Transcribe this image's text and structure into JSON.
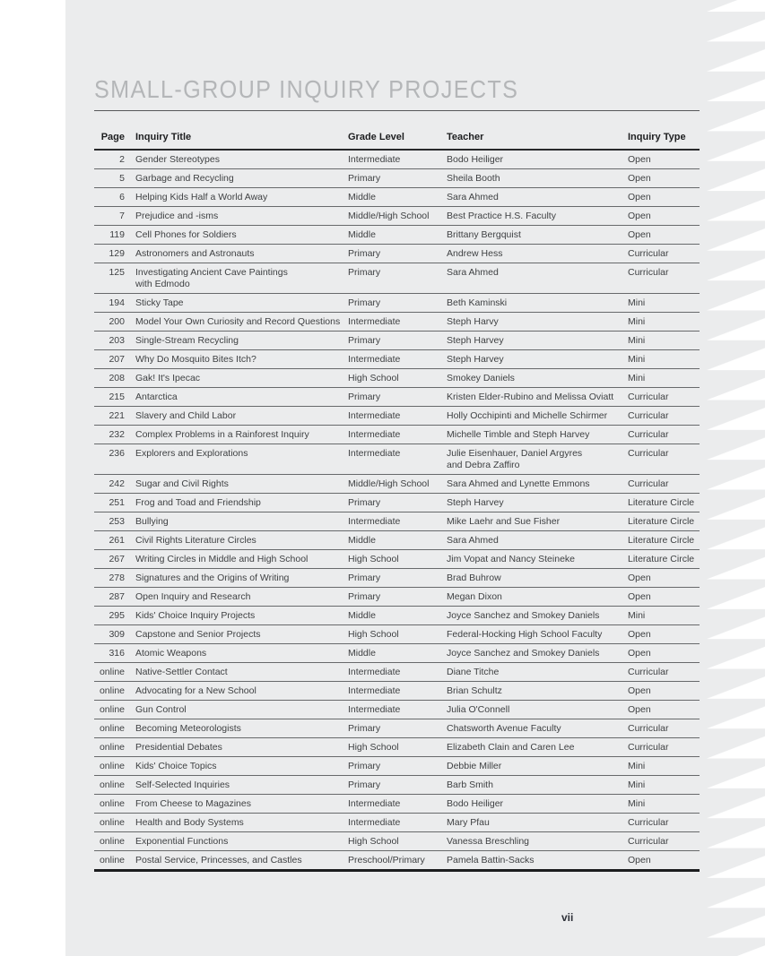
{
  "page": {
    "title": "SMALL-GROUP INQUIRY PROJECTS",
    "page_number": "vii"
  },
  "colors": {
    "sheet_background": "#ebeced",
    "margin_background": "#ffffff",
    "title_text": "#b4b6b8",
    "body_text": "#3f4143",
    "header_text": "#1d1e20",
    "row_rule": "#67696b",
    "heavy_rule": "#1c1d1f"
  },
  "table": {
    "headers": {
      "page": "Page",
      "title": "Inquiry Title",
      "grade": "Grade Level",
      "teacher": "Teacher",
      "type": "Inquiry Type"
    },
    "rows": [
      {
        "page": "2",
        "title": "Gender Stereotypes",
        "grade": "Intermediate",
        "teacher": "Bodo Heiliger",
        "type": "Open"
      },
      {
        "page": "5",
        "title": "Garbage and Recycling",
        "grade": "Primary",
        "teacher": "Sheila Booth",
        "type": "Open"
      },
      {
        "page": "6",
        "title": "Helping Kids Half a World Away",
        "grade": "Middle",
        "teacher": "Sara Ahmed",
        "type": "Open"
      },
      {
        "page": "7",
        "title": "Prejudice and -isms",
        "grade": "Middle/High School",
        "teacher": "Best Practice H.S. Faculty",
        "type": "Open"
      },
      {
        "page": "119",
        "title": "Cell Phones for Soldiers",
        "grade": "Middle",
        "teacher": "Brittany Bergquist",
        "type": "Open"
      },
      {
        "page": "129",
        "title": "Astronomers and Astronauts",
        "grade": "Primary",
        "teacher": "Andrew Hess",
        "type": "Curricular"
      },
      {
        "page": "125",
        "title": "Investigating Ancient Cave Paintings\nwith Edmodo",
        "grade": "Primary",
        "teacher": "Sara Ahmed",
        "type": "Curricular"
      },
      {
        "page": "194",
        "title": "Sticky Tape",
        "grade": "Primary",
        "teacher": "Beth Kaminski",
        "type": "Mini"
      },
      {
        "page": "200",
        "title": "Model Your Own Curiosity and Record Questions",
        "grade": "Intermediate",
        "teacher": "Steph Harvy",
        "type": "Mini"
      },
      {
        "page": "203",
        "title": "Single-Stream Recycling",
        "grade": "Primary",
        "teacher": "Steph Harvey",
        "type": "Mini"
      },
      {
        "page": "207",
        "title": "Why Do Mosquito Bites Itch?",
        "grade": "Intermediate",
        "teacher": "Steph Harvey",
        "type": "Mini"
      },
      {
        "page": "208",
        "title": "Gak! It's Ipecac",
        "grade": "High School",
        "teacher": "Smokey Daniels",
        "type": "Mini"
      },
      {
        "page": "215",
        "title": "Antarctica",
        "grade": "Primary",
        "teacher": "Kristen Elder-Rubino and Melissa Oviatt",
        "type": "Curricular"
      },
      {
        "page": "221",
        "title": "Slavery and Child Labor",
        "grade": "Intermediate",
        "teacher": "Holly Occhipinti and Michelle Schirmer",
        "type": "Curricular"
      },
      {
        "page": "232",
        "title": "Complex Problems in a Rainforest Inquiry",
        "grade": "Intermediate",
        "teacher": "Michelle Timble and Steph Harvey",
        "type": "Curricular"
      },
      {
        "page": "236",
        "title": "Explorers and Explorations",
        "grade": "Intermediate",
        "teacher": "Julie Eisenhauer, Daniel Argyres\nand Debra Zaffiro",
        "type": "Curricular"
      },
      {
        "page": "242",
        "title": "Sugar and Civil Rights",
        "grade": "Middle/High School",
        "teacher": "Sara Ahmed and Lynette Emmons",
        "type": "Curricular"
      },
      {
        "page": "251",
        "title": "Frog and Toad and Friendship",
        "grade": "Primary",
        "teacher": "Steph Harvey",
        "type": "Literature Circle"
      },
      {
        "page": "253",
        "title": "Bullying",
        "grade": "Intermediate",
        "teacher": "Mike Laehr and Sue Fisher",
        "type": "Literature Circle"
      },
      {
        "page": "261",
        "title": "Civil Rights Literature Circles",
        "grade": "Middle",
        "teacher": "Sara Ahmed",
        "type": "Literature Circle"
      },
      {
        "page": "267",
        "title": "Writing Circles in Middle and High School",
        "grade": "High School",
        "teacher": "Jim Vopat and Nancy Steineke",
        "type": "Literature Circle"
      },
      {
        "page": "278",
        "title": "Signatures and the Origins of Writing",
        "grade": "Primary",
        "teacher": "Brad Buhrow",
        "type": "Open"
      },
      {
        "page": "287",
        "title": "Open Inquiry and Research",
        "grade": "Primary",
        "teacher": "Megan Dixon",
        "type": "Open"
      },
      {
        "page": "295",
        "title": "Kids' Choice Inquiry Projects",
        "grade": "Middle",
        "teacher": "Joyce Sanchez and Smokey Daniels",
        "type": "Mini"
      },
      {
        "page": "309",
        "title": "Capstone and Senior Projects",
        "grade": "High School",
        "teacher": "Federal-Hocking High School Faculty",
        "type": "Open"
      },
      {
        "page": "316",
        "title": "Atomic Weapons",
        "grade": "Middle",
        "teacher": "Joyce Sanchez and Smokey Daniels",
        "type": "Open"
      },
      {
        "page": "online",
        "title": "Native-Settler Contact",
        "grade": "Intermediate",
        "teacher": "Diane Titche",
        "type": "Curricular"
      },
      {
        "page": "online",
        "title": "Advocating for a New School",
        "grade": "Intermediate",
        "teacher": "Brian Schultz",
        "type": "Open"
      },
      {
        "page": "online",
        "title": "Gun Control",
        "grade": "Intermediate",
        "teacher": "Julia O'Connell",
        "type": "Open"
      },
      {
        "page": "online",
        "title": "Becoming Meteorologists",
        "grade": "Primary",
        "teacher": "Chatsworth Avenue Faculty",
        "type": "Curricular"
      },
      {
        "page": "online",
        "title": "Presidential Debates",
        "grade": "High School",
        "teacher": "Elizabeth Clain and Caren Lee",
        "type": "Curricular"
      },
      {
        "page": "online",
        "title": "Kids' Choice Topics",
        "grade": "Primary",
        "teacher": "Debbie Miller",
        "type": "Mini"
      },
      {
        "page": "online",
        "title": "Self-Selected Inquiries",
        "grade": "Primary",
        "teacher": "Barb Smith",
        "type": "Mini"
      },
      {
        "page": "online",
        "title": "From Cheese to Magazines",
        "grade": "Intermediate",
        "teacher": "Bodo Heiliger",
        "type": "Mini"
      },
      {
        "page": "online",
        "title": "Health and Body Systems",
        "grade": "Intermediate",
        "teacher": "Mary Pfau",
        "type": "Curricular"
      },
      {
        "page": "online",
        "title": "Exponential Functions",
        "grade": "High School",
        "teacher": "Vanessa Breschling",
        "type": "Curricular"
      },
      {
        "page": "online",
        "title": "Postal Service, Princesses, and Castles",
        "grade": "Preschool/Primary",
        "teacher": "Pamela Battin-Sacks",
        "type": "Open"
      }
    ]
  }
}
